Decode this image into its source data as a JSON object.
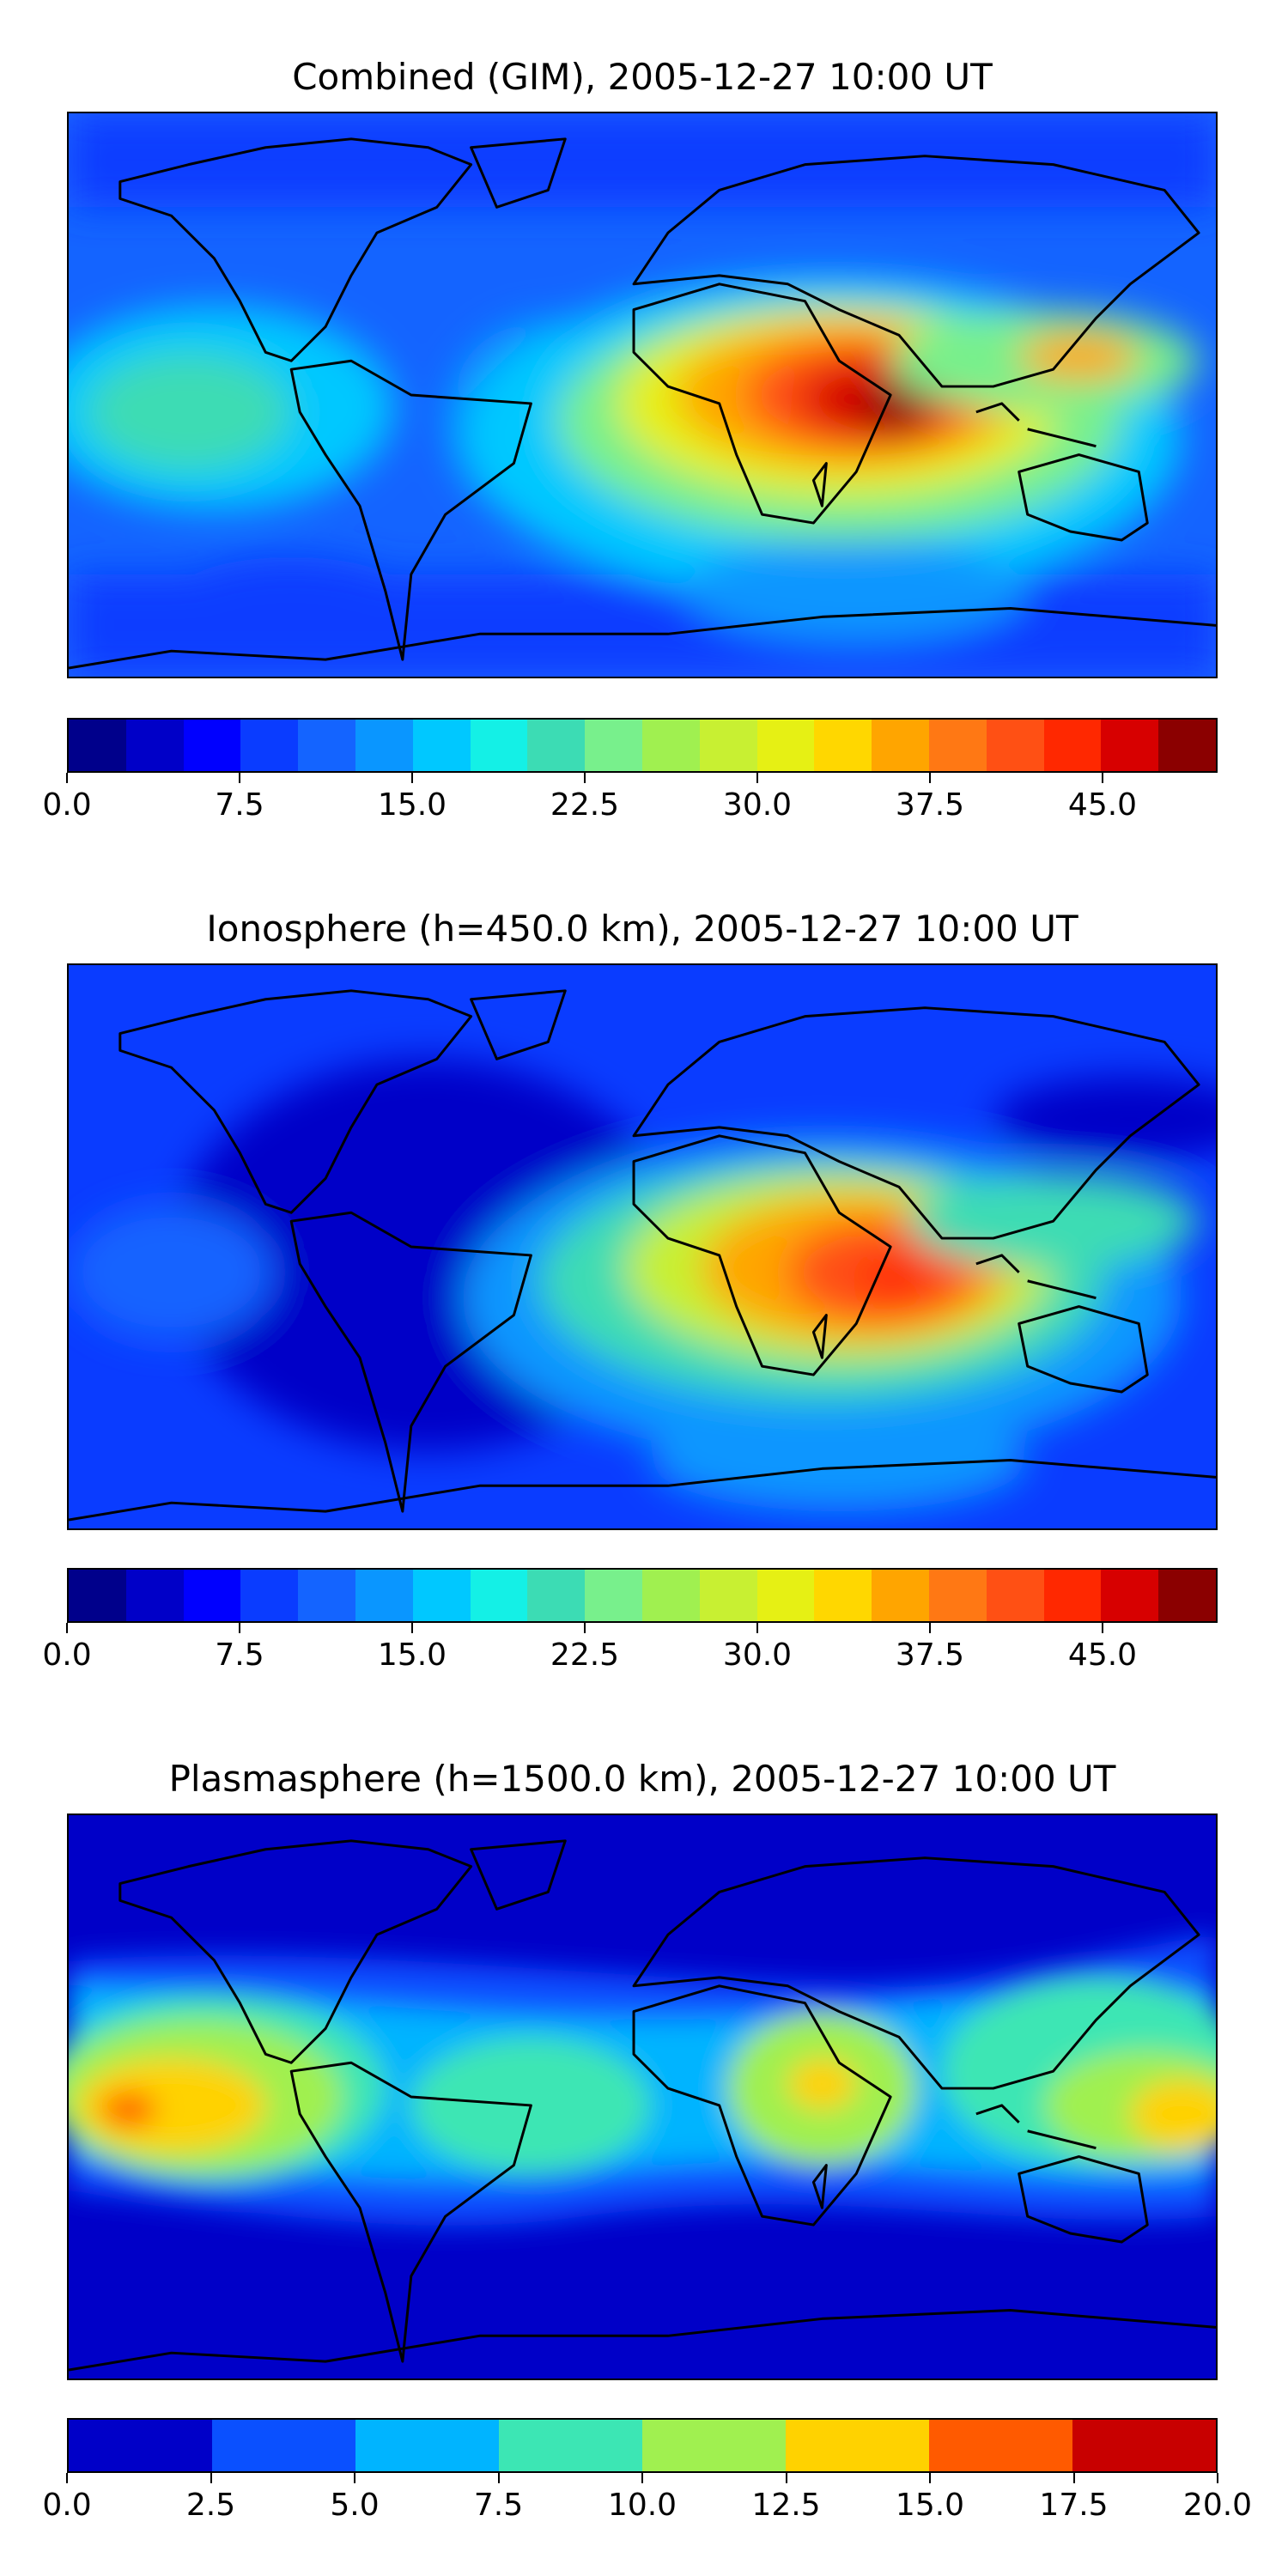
{
  "panels": [
    {
      "title": "Combined (GIM), 2005-12-27 10:00 UT",
      "colorbar": {
        "min": 0,
        "max": 50,
        "step": 2.5,
        "colors": [
          "#00008b",
          "#0000c8",
          "#0000ff",
          "#0a3cff",
          "#1464ff",
          "#0a96ff",
          "#00c8ff",
          "#14f0e6",
          "#3cdcb4",
          "#78f08c",
          "#a0f050",
          "#c8f032",
          "#e6f014",
          "#ffd700",
          "#ffa500",
          "#ff7814",
          "#ff5014",
          "#ff2800",
          "#d70000",
          "#8b0000"
        ],
        "tick_labels": [
          "0.0",
          "7.5",
          "15.0",
          "22.5",
          "30.0",
          "37.5",
          "45.0"
        ],
        "tick_values": [
          0,
          7.5,
          15,
          22.5,
          30,
          37.5,
          45
        ]
      }
    },
    {
      "title": "Ionosphere  (h=450.0 km), 2005-12-27 10:00 UT",
      "colorbar": {
        "min": 0,
        "max": 50,
        "step": 2.5,
        "colors": [
          "#00008b",
          "#0000c8",
          "#0000ff",
          "#0a3cff",
          "#1464ff",
          "#0a96ff",
          "#00c8ff",
          "#14f0e6",
          "#3cdcb4",
          "#78f08c",
          "#a0f050",
          "#c8f032",
          "#e6f014",
          "#ffd700",
          "#ffa500",
          "#ff7814",
          "#ff5014",
          "#ff2800",
          "#d70000",
          "#8b0000"
        ],
        "tick_labels": [
          "0.0",
          "7.5",
          "15.0",
          "22.5",
          "30.0",
          "37.5",
          "45.0"
        ],
        "tick_values": [
          0,
          7.5,
          15,
          22.5,
          30,
          37.5,
          45
        ]
      }
    },
    {
      "title": "Plasmasphere (h=1500.0 km), 2005-12-27 10:00 UT",
      "colorbar": {
        "min": 0,
        "max": 20,
        "step": 2.5,
        "colors": [
          "#0000c8",
          "#0a50ff",
          "#00b4ff",
          "#3ce6b4",
          "#a0f050",
          "#ffd200",
          "#ff5a00",
          "#c80000"
        ],
        "tick_labels": [
          "0.0",
          "2.5",
          "5.0",
          "7.5",
          "10.0",
          "12.5",
          "15.0",
          "17.5",
          "20.0"
        ],
        "tick_values": [
          0,
          2.5,
          5,
          7.5,
          10,
          12.5,
          15,
          17.5,
          20
        ]
      }
    }
  ],
  "chart_data": [
    {
      "type": "heatmap",
      "title": "Combined (GIM), 2005-12-27 10:00 UT",
      "projection": "global lat-lon map with coastlines",
      "x_range_deg": [
        -180,
        180
      ],
      "y_range_deg": [
        -90,
        90
      ],
      "colorbar_range": [
        0,
        50
      ],
      "colorbar_levels": 20,
      "features": [
        {
          "region": "North Africa / Arabia / Indian Ocean (near 10N, 60E)",
          "approx_peak": 48
        },
        {
          "region": "Southeast Asia / Philippines",
          "approx_value": 35
        },
        {
          "region": "Central Pacific near equator",
          "approx_value": 20
        },
        {
          "region": "Southern high latitudes",
          "approx_value": 8
        },
        {
          "region": "Northern high latitudes",
          "approx_value": 8
        }
      ]
    },
    {
      "type": "heatmap",
      "title": "Ionosphere  (h=450.0 km), 2005-12-27 10:00 UT",
      "projection": "global lat-lon map with coastlines",
      "x_range_deg": [
        -180,
        180
      ],
      "y_range_deg": [
        -90,
        90
      ],
      "colorbar_range": [
        0,
        50
      ],
      "colorbar_levels": 20,
      "features": [
        {
          "region": "East Africa / Indian Ocean (near 5S, 60E)",
          "approx_peak": 42
        },
        {
          "region": "Southeast Asia",
          "approx_value": 25
        },
        {
          "region": "Americas / Atlantic",
          "approx_value": 4
        },
        {
          "region": "Central Pacific",
          "approx_value": 10
        }
      ]
    },
    {
      "type": "heatmap",
      "title": "Plasmasphere (h=1500.0 km), 2005-12-27 10:00 UT",
      "projection": "global lat-lon map with coastlines",
      "x_range_deg": [
        -180,
        180
      ],
      "y_range_deg": [
        -90,
        90
      ],
      "colorbar_range": [
        0,
        20
      ],
      "colorbar_levels": 8,
      "features": [
        {
          "region": "Central Pacific (near 0, 170W)",
          "approx_peak": 16
        },
        {
          "region": "Western Pacific / Philippines",
          "approx_value": 13
        },
        {
          "region": "East Africa (near 10N, 40E)",
          "approx_value": 13
        },
        {
          "region": "Equatorial band",
          "approx_value": 9
        },
        {
          "region": "Polar regions",
          "approx_value": 1.5
        }
      ]
    }
  ]
}
